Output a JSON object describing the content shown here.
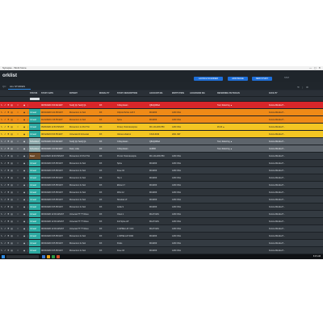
{
  "titlebar": {
    "title": "Synapse - Work home"
  },
  "header": {
    "title": "orklist",
    "buttons": [
      "LAUNCH SCANNER",
      "ADD IMAGE",
      "NEW STUDY"
    ],
    "stat_label": "STAT"
  },
  "tabs": [
    "QC",
    "ALL STUDIES"
  ],
  "columns": [
    "",
    "",
    "",
    "STATUS",
    "STUDY DATE",
    "PATIENT",
    "MODALITY",
    "STUDY DESCRIPTION",
    "ACCOUNT NO.",
    "INSTITUTION",
    "ACCESSION NO.",
    "REFERRING PHYSICIAN",
    "FACILITY"
  ],
  "rows": [
    {
      "style": "red",
      "status": "",
      "status_style": "",
      "date": "08/15/2020 3:09 AM EST",
      "patient": "TestQ QL TestQ QL",
      "modality": "DX",
      "desc": "X-Ray Exam",
      "account": "Q8AQ2MAA",
      "institution": "",
      "accession": "",
      "physician": "Tool, Referring ▲",
      "facility": "Konica Minolta H..."
    },
    {
      "style": "orange",
      "status": "Unread",
      "status_style": "teal",
      "date": "08/10/2020 9:44 PM EST",
      "patient": "Momentum 1L Sub",
      "modality": "DX",
      "desc": "Chlprod 62 Ex.nd3 X",
      "account": "MC4Z09",
      "institution": "1260 Ohio",
      "accession": "",
      "physician": "",
      "facility": "Konica Minolta H..."
    },
    {
      "style": "orange",
      "status": "Unread",
      "status_style": "teal",
      "date": "11/21/2020 2:15 PM EST",
      "patient": "Momentum 1L Sub",
      "modality": "DX",
      "desc": "Spine",
      "account": "MC4Z09",
      "institution": "1260 Ohio",
      "accession": "",
      "physician": "",
      "facility": "Konica Minolta H..."
    },
    {
      "style": "yellow",
      "status": "Unread",
      "status_style": "teal",
      "date": "05/26/2020 11:50 PM EST",
      "patient": "Momentum 1L Prof TGI",
      "modality": "DX",
      "desc": "Portery Tools Examples",
      "account": "MC-1CL1PA4750",
      "institution": "1260 Ohio",
      "accession": "",
      "physician": "Z0.20 ▲",
      "facility": "Konica Minolta H..."
    },
    {
      "style": "yellow",
      "status": "Unread",
      "status_style": "teal",
      "date": "08/11/2020 8:03 PM EST",
      "patient": "Universal 20 Universal",
      "modality": "DX",
      "desc": "Various whatnot",
      "account": "CX24-6049",
      "institution": "2001 VET",
      "accession": "",
      "physician": "",
      "facility": "Konica Minolta H..."
    },
    {
      "style": "gray",
      "status": "Scheduled",
      "status_style": "tealgray",
      "date": "04/15/2020 3:09 AM EST",
      "patient": "TestQ QL TestQ QL",
      "modality": "DX",
      "desc": "X-Ray Exam",
      "account": "Q8AQ2MAA",
      "institution": "",
      "accession": "",
      "physician": "Tool, Referring ▲",
      "facility": "Konica Minolta H..."
    },
    {
      "style": "gray",
      "status": "Scheduled",
      "status_style": "tealgray",
      "date": "08/10/2020 1:00 AM EST",
      "patient": "Dusk, Lotte",
      "modality": "DX",
      "desc": "X-Ray Exam",
      "account": "116806",
      "institution": "",
      "accession": "",
      "physician": "Tool, Referring ▲",
      "facility": "Konica Minolta H..."
    },
    {
      "style": "dark",
      "status": "Read",
      "status_style": "brown",
      "date": "11/12/2020 10:09 PM EST",
      "patient": "Momentum 2X Prof TGI",
      "modality": "DX",
      "desc": "Proctor Tools Example",
      "account": "MC-1CL1PA4750",
      "institution": "1260 Ohio",
      "accession": "",
      "physician": "",
      "facility": "Konica Minolta H..."
    },
    {
      "style": "dark2",
      "status": "Unread",
      "status_style": "teal",
      "date": "08/16/2020 6:05 PM EST",
      "patient": "Momentum 2L Sub",
      "modality": "DX",
      "desc": "Spine",
      "account": "MC4Z09",
      "institution": "1260 Ohio",
      "accession": "",
      "physician": "",
      "facility": "Konica Minolta H..."
    },
    {
      "style": "dark",
      "status": "Unread",
      "status_style": "teal",
      "date": "08/16/2020 6:05 PM EST",
      "patient": "Momentum 2L Sub",
      "modality": "DX",
      "desc": "Knee 02",
      "account": "MC4Z09",
      "institution": "1260 Ohio",
      "accession": "",
      "physician": "",
      "facility": "Konica Minolta H..."
    },
    {
      "style": "dark2",
      "status": "Unread",
      "status_style": "teal",
      "date": "08/16/2020 6:05 PM EST",
      "patient": "Momentum 2L Sub",
      "modality": "DX",
      "desc": "Hip 4",
      "account": "MC4Z09",
      "institution": "1260 Ohio",
      "accession": "",
      "physician": "",
      "facility": "Konica Minolta H..."
    },
    {
      "style": "dark",
      "status": "Unread",
      "status_style": "teal",
      "date": "08/16/2020 6:05 PM EST",
      "patient": "Momentum 2L Sub",
      "modality": "DX",
      "desc": "Elbow 17",
      "account": "MC4Z09",
      "institution": "1260 Ohio",
      "accession": "",
      "physician": "",
      "facility": "Konica Minolta H..."
    },
    {
      "style": "dark2",
      "status": "Unread",
      "status_style": "teal",
      "date": "08/16/2020 6:05 PM EST",
      "patient": "Momentum 2L Sub",
      "modality": "DX",
      "desc": "Wrist 12",
      "account": "MC4Z09",
      "institution": "1260 Ohio",
      "accession": "",
      "physician": "",
      "facility": "Konica Minolta H..."
    },
    {
      "style": "dark",
      "status": "Unread",
      "status_style": "teal",
      "date": "08/16/2020 6:05 PM EST",
      "patient": "Momentum 2L Sub",
      "modality": "DX",
      "desc": "Shoulder 2f",
      "account": "MC4Z09",
      "institution": "1260 Ohio",
      "accession": "",
      "physician": "",
      "facility": "Konica Minolta H..."
    },
    {
      "style": "dark2",
      "status": "Unread",
      "status_style": "teal",
      "date": "08/16/2020 6:05 PM EST",
      "patient": "Momentum 2L Sub",
      "modality": "DX",
      "desc": "Ankle 9",
      "account": "MC4Z09",
      "institution": "1260 Ohio",
      "accession": "",
      "physician": "",
      "facility": "Konica Minolta H..."
    },
    {
      "style": "dark",
      "status": "Unread",
      "status_style": "teal",
      "date": "08/16/2020 12:00 AM EST",
      "patient": "Universal TT TT Rules",
      "modality": "DX",
      "desc": "Chest 1",
      "account": "MA17314S",
      "institution": "1260 Ohio",
      "accession": "",
      "physician": "",
      "facility": "Konica Minolta H..."
    },
    {
      "style": "dark2",
      "status": "Unread",
      "status_style": "teal",
      "date": "08/16/2020 12:00 AM EST",
      "patient": "Universal TT TT Rules",
      "modality": "DX",
      "desc": "Full Spine AP",
      "account": "MA17314S",
      "institution": "1260 Ohio",
      "accession": "",
      "physician": "",
      "facility": "Konica Minolta H..."
    },
    {
      "style": "dark",
      "status": "Unread",
      "status_style": "teal",
      "date": "08/16/2020 12:00 AM EST",
      "patient": "Universal TT TT Rules",
      "modality": "DX",
      "desc": "C-SPINE LAT 3 DX",
      "account": "MA17314S",
      "institution": "1260 Ohio",
      "accession": "",
      "physician": "",
      "facility": "Konica Minolta H..."
    },
    {
      "style": "dark2",
      "status": "Unread",
      "status_style": "teal",
      "date": "08/16/2020 6:05 PM EST",
      "patient": "Momentum 2L Sub",
      "modality": "DX",
      "desc": "L-SPINE LAT 0000",
      "account": "MC4Z09",
      "institution": "1260 Ohio",
      "accession": "",
      "physician": "",
      "facility": "Konica Minolta H..."
    },
    {
      "style": "dark",
      "status": "Unread",
      "status_style": "teal",
      "date": "08/16/2020 6:05 PM EST",
      "patient": "Momentum 2L Sub",
      "modality": "DX",
      "desc": "Pelvis",
      "account": "MC4Z09",
      "institution": "1260 Ohio",
      "accession": "",
      "physician": "",
      "facility": "Konica Minolta H..."
    },
    {
      "style": "dark2",
      "status": "Unread",
      "status_style": "teal",
      "date": "08/16/2020 6:05 PM EST",
      "patient": "Momentum 2L Sub",
      "modality": "DX",
      "desc": "Knee 03",
      "account": "MC4Z09",
      "institution": "1260 Ohio",
      "accession": "",
      "physician": "",
      "facility": "Konica Minolta H..."
    }
  ],
  "footer": {
    "left": "Worklist Data (v1.7)",
    "right": "Showing 21 of 21"
  },
  "taskbar": {
    "clock": "8:15 AM"
  },
  "colors": {
    "accent": "#1e6fd9",
    "red_row": "#d8262a",
    "orange_row": "#ef8a17",
    "yellow_row": "#f3c623",
    "status_teal": "#2ba8a0",
    "background": "#252b32"
  }
}
